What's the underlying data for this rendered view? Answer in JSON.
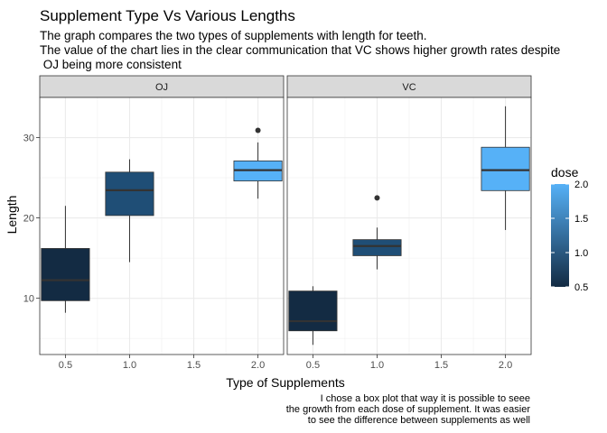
{
  "chart_data": {
    "type": "boxplot",
    "title": "Supplement Type Vs Various Lengths",
    "subtitle_lines": [
      "The graph compares the two types of supplements with length for teeth.",
      "The value of the chart lies in the clear communication that VC shows higher growth rates despite",
      " OJ being more consistent"
    ],
    "xlabel": "Type of Supplements",
    "ylabel": "Length",
    "caption_lines": [
      "I chose a box plot that way it is possible to seee",
      "the growth from each dose of supplement. It was easier",
      "to see the difference between supplements as well"
    ],
    "x_ticks": [
      "0.5",
      "1.0",
      "1.5",
      "2.0"
    ],
    "x_tick_values": [
      0.5,
      1.0,
      1.5,
      2.0
    ],
    "xlim": [
      0.3,
      2.2
    ],
    "y_ticks": [
      "10",
      "20",
      "30"
    ],
    "y_tick_values": [
      10,
      20,
      30
    ],
    "ylim": [
      3,
      35
    ],
    "grid": true,
    "legend": {
      "title": "dose",
      "position": "right",
      "ticks": [
        "2.0",
        "1.5",
        "1.0",
        "0.5"
      ],
      "tick_values": [
        2.0,
        1.5,
        1.0,
        0.5
      ],
      "range": [
        0.5,
        2.0
      ],
      "color_low": "#132B43",
      "color_high": "#56B1F7"
    },
    "panels": [
      {
        "name": "OJ",
        "boxes": [
          {
            "dose": 0.5,
            "whisker_low": 8.2,
            "q1": 9.7,
            "median": 12.25,
            "q3": 16.2,
            "whisker_high": 21.5,
            "outliers": [],
            "fill": "#132B43"
          },
          {
            "dose": 1.0,
            "whisker_low": 14.5,
            "q1": 20.3,
            "median": 23.45,
            "q3": 25.7,
            "whisker_high": 27.3,
            "outliers": [],
            "fill": "#1F4E76"
          },
          {
            "dose": 2.0,
            "whisker_low": 22.4,
            "q1": 24.6,
            "median": 25.95,
            "q3": 27.1,
            "whisker_high": 29.4,
            "outliers": [
              30.9
            ],
            "fill": "#56B1F7"
          }
        ]
      },
      {
        "name": "VC",
        "boxes": [
          {
            "dose": 0.5,
            "whisker_low": 4.2,
            "q1": 5.95,
            "median": 7.15,
            "q3": 10.9,
            "whisker_high": 11.5,
            "outliers": [],
            "fill": "#132B43"
          },
          {
            "dose": 1.0,
            "whisker_low": 13.6,
            "q1": 15.3,
            "median": 16.5,
            "q3": 17.3,
            "whisker_high": 18.8,
            "outliers": [
              22.5
            ],
            "fill": "#1F4E76"
          },
          {
            "dose": 2.0,
            "whisker_low": 18.5,
            "q1": 23.4,
            "median": 25.95,
            "q3": 28.8,
            "whisker_high": 33.9,
            "outliers": [],
            "fill": "#56B1F7"
          }
        ]
      }
    ]
  }
}
